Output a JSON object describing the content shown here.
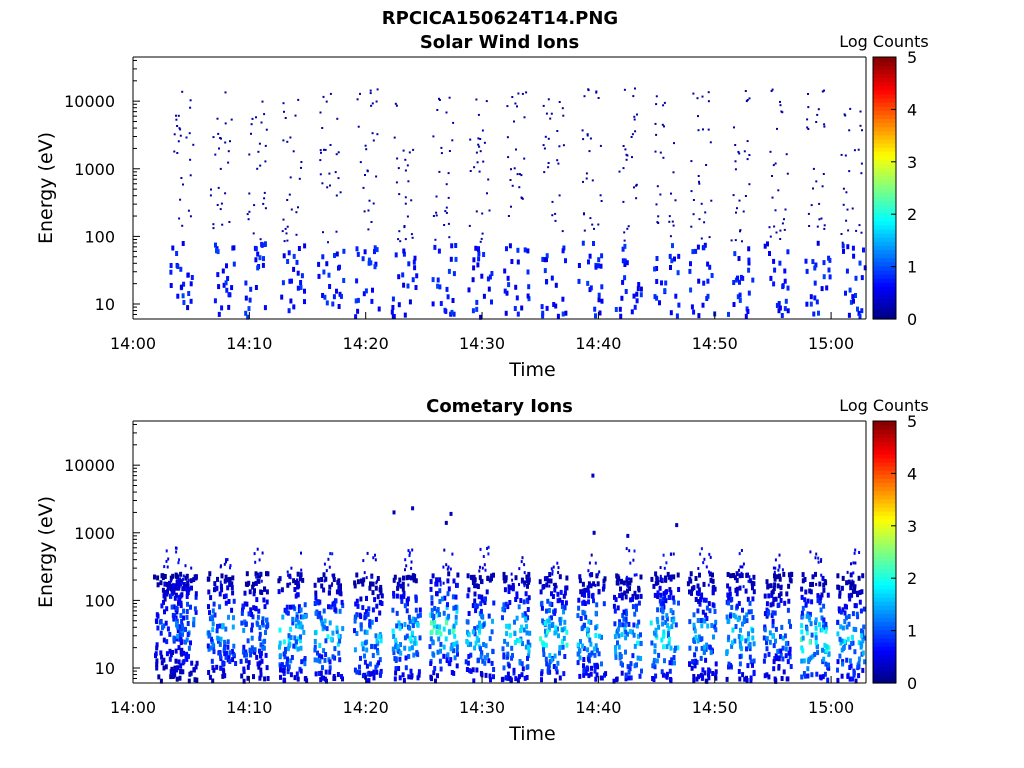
{
  "figure": {
    "file_title": "RPCICA150624T14.PNG"
  },
  "chart_data": [
    {
      "type": "heatmap",
      "title": "Solar Wind Ions",
      "xlabel": "Time",
      "ylabel": "Energy (eV)",
      "y_scale": "log",
      "ylim": [
        6,
        45000
      ],
      "xlim": [
        "14:00",
        "15:03"
      ],
      "x_ticks": [
        "14:00",
        "14:10",
        "14:20",
        "14:30",
        "14:40",
        "14:50",
        "15:00"
      ],
      "y_ticks": [
        "10",
        "100",
        "1000",
        "10000"
      ],
      "colorbar": {
        "label": "Log Counts",
        "range": [
          0,
          5
        ],
        "ticks": [
          "0",
          "1",
          "2",
          "3",
          "4",
          "5"
        ],
        "colormap": "jet"
      },
      "sweeps": [
        {
          "t": 4.3,
          "level": 0.7,
          "low": 0.9
        },
        {
          "t": 7.6,
          "level": 0.6,
          "low": 0.9
        },
        {
          "t": 10.7,
          "level": 0.6,
          "low": 0.9
        },
        {
          "t": 13.7,
          "level": 0.6,
          "low": 0.9
        },
        {
          "t": 17.0,
          "level": 0.6,
          "low": 0.9
        },
        {
          "t": 20.2,
          "level": 0.6,
          "low": 0.9
        },
        {
          "t": 23.3,
          "level": 0.6,
          "low": 0.9
        },
        {
          "t": 26.7,
          "level": 0.8,
          "low": 0.9
        },
        {
          "t": 29.8,
          "level": 0.6,
          "low": 0.9
        },
        {
          "t": 33.0,
          "level": 0.6,
          "low": 0.9
        },
        {
          "t": 36.2,
          "level": 0.6,
          "low": 0.9
        },
        {
          "t": 39.4,
          "level": 0.6,
          "low": 0.9
        },
        {
          "t": 42.6,
          "level": 0.6,
          "low": 0.9
        },
        {
          "t": 45.8,
          "level": 0.6,
          "low": 0.9
        },
        {
          "t": 48.9,
          "level": 0.6,
          "low": 0.9
        },
        {
          "t": 52.2,
          "level": 0.6,
          "low": 0.9
        },
        {
          "t": 55.4,
          "level": 0.6,
          "low": 0.9
        },
        {
          "t": 58.8,
          "level": 0.6,
          "low": 0.9
        },
        {
          "t": 61.8,
          "level": 0.6,
          "low": 0.9
        }
      ]
    },
    {
      "type": "heatmap",
      "title": "Cometary Ions",
      "xlabel": "Time",
      "ylabel": "Energy (eV)",
      "y_scale": "log",
      "ylim": [
        6,
        45000
      ],
      "xlim": [
        "14:00",
        "15:03"
      ],
      "x_ticks": [
        "14:00",
        "14:10",
        "14:20",
        "14:30",
        "14:40",
        "14:50",
        "15:00"
      ],
      "y_ticks": [
        "10",
        "100",
        "1000",
        "10000"
      ],
      "colorbar": {
        "label": "Log Counts",
        "range": [
          0,
          5
        ],
        "ticks": [
          "0",
          "1",
          "2",
          "3",
          "4",
          "5"
        ],
        "colormap": "jet"
      },
      "sweeps": [
        {
          "t": 3.0,
          "level": 1.0,
          "peak_ev": 40
        },
        {
          "t": 4.3,
          "level": 1.5,
          "peak_ev": 40
        },
        {
          "t": 7.6,
          "level": 1.6,
          "peak_ev": 35
        },
        {
          "t": 10.4,
          "level": 1.4,
          "peak_ev": 30
        },
        {
          "t": 13.7,
          "level": 2.0,
          "peak_ev": 30
        },
        {
          "t": 16.8,
          "level": 1.9,
          "peak_ev": 30
        },
        {
          "t": 20.2,
          "level": 1.7,
          "peak_ev": 25
        },
        {
          "t": 23.5,
          "level": 1.9,
          "peak_ev": 30
        },
        {
          "t": 26.7,
          "level": 2.3,
          "peak_ev": 40
        },
        {
          "t": 29.8,
          "level": 1.9,
          "peak_ev": 30
        },
        {
          "t": 32.9,
          "level": 2.1,
          "peak_ev": 30
        },
        {
          "t": 36.1,
          "level": 2.2,
          "peak_ev": 30
        },
        {
          "t": 39.4,
          "level": 2.0,
          "peak_ev": 30
        },
        {
          "t": 42.5,
          "level": 1.9,
          "peak_ev": 25
        },
        {
          "t": 45.7,
          "level": 2.1,
          "peak_ev": 30
        },
        {
          "t": 48.9,
          "level": 1.7,
          "peak_ev": 30
        },
        {
          "t": 52.2,
          "level": 2.0,
          "peak_ev": 30
        },
        {
          "t": 55.4,
          "level": 1.5,
          "peak_ev": 30
        },
        {
          "t": 58.6,
          "level": 2.2,
          "peak_ev": 25
        },
        {
          "t": 61.7,
          "level": 1.8,
          "peak_ev": 25
        }
      ],
      "sparse_points": [
        {
          "t": 22.3,
          "ev": 2000
        },
        {
          "t": 23.9,
          "ev": 2300
        },
        {
          "t": 26.8,
          "ev": 1400
        },
        {
          "t": 27.2,
          "ev": 1900
        },
        {
          "t": 39.4,
          "ev": 7000
        },
        {
          "t": 39.5,
          "ev": 1000
        },
        {
          "t": 42.4,
          "ev": 900
        },
        {
          "t": 46.6,
          "ev": 1300
        }
      ]
    }
  ]
}
